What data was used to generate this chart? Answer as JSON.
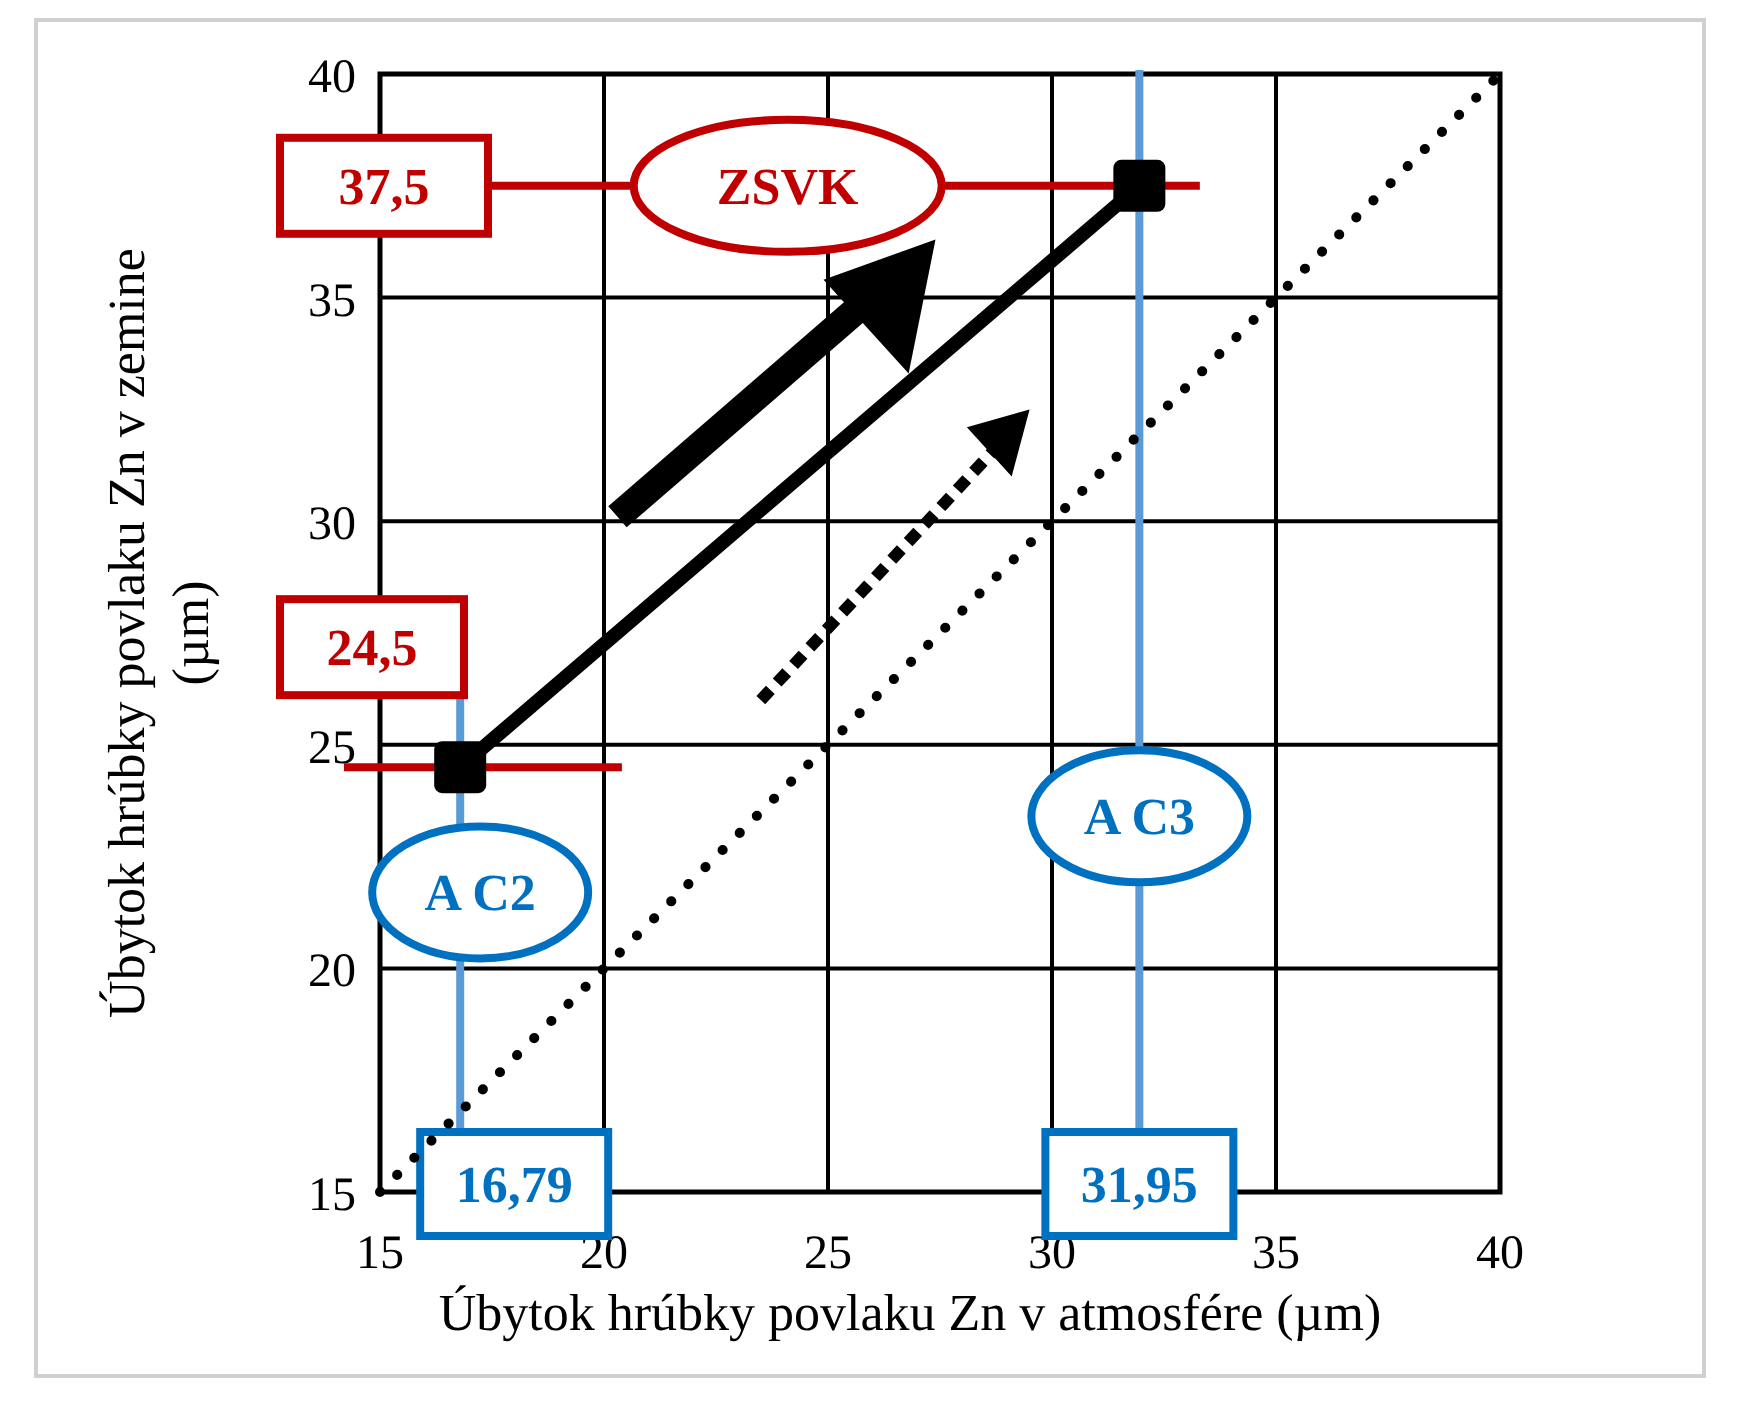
{
  "chart_data": {
    "type": "line",
    "xlabel": "Úbytok hrúbky povlaku Zn v atmosfére (µm)",
    "ylabel": "Úbytok hrúbky povlaku Zn v zemine (µm)",
    "xlim": [
      15,
      40
    ],
    "ylim": [
      15,
      40
    ],
    "xticks": [
      15,
      20,
      25,
      30,
      35,
      40
    ],
    "yticks": [
      15,
      20,
      25,
      30,
      35,
      40
    ],
    "grid": true,
    "series": [
      {
        "name": "ZSVK",
        "x": [
          16.79,
          31.95
        ],
        "values": [
          24.5,
          37.5
        ],
        "color": "#000000",
        "marker": "square",
        "line_style": "solid"
      },
      {
        "x": [
          15,
          40
        ],
        "values": [
          15,
          40
        ],
        "color": "#000000",
        "marker": "none",
        "line_style": "dotted"
      }
    ],
    "ref_lines": [
      {
        "axis": "x",
        "value": 16.79,
        "label": "16,79",
        "color": "#5b9bd5"
      },
      {
        "axis": "x",
        "value": 31.95,
        "label": "31,95",
        "color": "#5b9bd5"
      },
      {
        "axis": "y",
        "value": 24.5,
        "label": "24,5",
        "color": "#c00000"
      },
      {
        "axis": "y",
        "value": 37.5,
        "label": "37,5",
        "color": "#c00000"
      }
    ],
    "annotations": [
      {
        "text": "A C2",
        "x": 16.79,
        "y": 21.7
      },
      {
        "text": "A C3",
        "x": 31.95,
        "y": 23.4
      }
    ]
  }
}
